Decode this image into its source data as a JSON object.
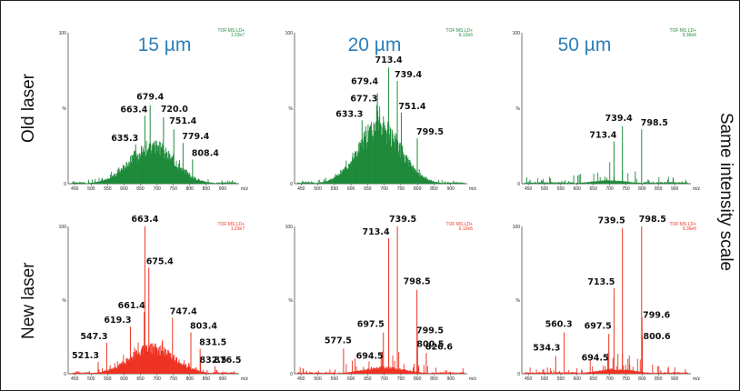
{
  "row_labels": [
    "Old laser",
    "New laser"
  ],
  "column_titles": [
    "15 µm",
    "20 µm",
    "50 µm"
  ],
  "side_label": "Same intensity scale",
  "colors": {
    "old": "#1e8a3a",
    "new": "#ee3322",
    "column_title": "#2c7fb8"
  },
  "chart_data": [
    {
      "type": "bar",
      "row": "Old laser",
      "column": "15 µm",
      "header": [
        "TOF MS LD+",
        "1.23e7"
      ],
      "ylabel": "%",
      "xlabel": "m/z",
      "xlim": [
        430,
        950
      ],
      "ylim": [
        0,
        100
      ],
      "xticks": [
        450,
        500,
        550,
        600,
        650,
        700,
        750,
        800,
        850,
        900
      ],
      "ytick_labels": [
        "100",
        "%",
        "0"
      ],
      "envelope": {
        "center": 685,
        "width": 95,
        "height": 24
      },
      "peaks": [
        {
          "mz": 635.3,
          "rel": 26,
          "label": "635.3"
        },
        {
          "mz": 663.4,
          "rel": 45,
          "label": "663.4"
        },
        {
          "mz": 679.4,
          "rel": 52,
          "label": "679.4"
        },
        {
          "mz": 720.0,
          "rel": 44,
          "label": "720.0"
        },
        {
          "mz": 751.4,
          "rel": 36,
          "label": "751.4"
        },
        {
          "mz": 779.4,
          "rel": 27,
          "label": "779.4"
        },
        {
          "mz": 808.4,
          "rel": 16,
          "label": "808.4"
        }
      ]
    },
    {
      "type": "bar",
      "row": "Old laser",
      "column": "20 µm",
      "header": [
        "TOF MS LD+",
        "6.12e6"
      ],
      "ylabel": "%",
      "xlabel": "m/z",
      "xlim": [
        430,
        950
      ],
      "ylim": [
        0,
        100
      ],
      "xticks": [
        450,
        500,
        550,
        600,
        650,
        700,
        750,
        800,
        850,
        900
      ],
      "ytick_labels": [
        "100",
        "%",
        "0"
      ],
      "envelope": {
        "center": 685,
        "width": 90,
        "height": 37
      },
      "peaks": [
        {
          "mz": 633.3,
          "rel": 42,
          "label": "633.3"
        },
        {
          "mz": 677.3,
          "rel": 52,
          "label": "677.3"
        },
        {
          "mz": 679.4,
          "rel": 60,
          "label": "679.4"
        },
        {
          "mz": 713.4,
          "rel": 77,
          "label": "713.4"
        },
        {
          "mz": 739.4,
          "rel": 68,
          "label": "739.4"
        },
        {
          "mz": 751.4,
          "rel": 47,
          "label": "751.4"
        },
        {
          "mz": 799.5,
          "rel": 30,
          "label": "799.5"
        }
      ]
    },
    {
      "type": "bar",
      "row": "Old laser",
      "column": "50 µm",
      "header": [
        "TOF MS LD+",
        "9.36e6"
      ],
      "ylabel": "%",
      "xlabel": "m/z",
      "xlim": [
        430,
        950
      ],
      "ylim": [
        0,
        100
      ],
      "xticks": [
        450,
        500,
        550,
        600,
        650,
        700,
        750,
        800,
        850,
        900
      ],
      "ytick_labels": [
        "100",
        "%",
        "0"
      ],
      "envelope": {
        "center": 700,
        "width": 80,
        "height": 2
      },
      "peaks": [
        {
          "mz": 713.4,
          "rel": 28,
          "label": "713.4"
        },
        {
          "mz": 739.4,
          "rel": 38,
          "label": "739.4"
        },
        {
          "mz": 798.5,
          "rel": 36,
          "label": "798.5"
        }
      ]
    },
    {
      "type": "bar",
      "row": "New laser",
      "column": "15 µm",
      "header": [
        "TOF MS LD+",
        "1.23e7"
      ],
      "ylabel": "%",
      "xlabel": "m/z",
      "xlim": [
        430,
        950
      ],
      "ylim": [
        0,
        100
      ],
      "xticks": [
        450,
        500,
        550,
        600,
        650,
        700,
        750,
        800,
        850,
        900
      ],
      "ytick_labels": [
        "100",
        "%",
        "0"
      ],
      "envelope": {
        "center": 685,
        "width": 95,
        "height": 17
      },
      "peaks": [
        {
          "mz": 521.3,
          "rel": 8,
          "label": "521.3"
        },
        {
          "mz": 547.3,
          "rel": 21,
          "label": "547.3"
        },
        {
          "mz": 619.3,
          "rel": 32,
          "label": "619.3"
        },
        {
          "mz": 661.4,
          "rel": 42,
          "label": "661.4"
        },
        {
          "mz": 663.4,
          "rel": 100,
          "label": "663.4"
        },
        {
          "mz": 675.4,
          "rel": 72,
          "label": "675.4"
        },
        {
          "mz": 747.4,
          "rel": 38,
          "label": "747.4"
        },
        {
          "mz": 803.4,
          "rel": 28,
          "label": "803.4"
        },
        {
          "mz": 831.5,
          "rel": 17,
          "label": "831.5"
        },
        {
          "mz": 832.5,
          "rel": 11,
          "label": "832.5"
        },
        {
          "mz": 876.5,
          "rel": 5,
          "label": "876.5"
        }
      ]
    },
    {
      "type": "bar",
      "row": "New laser",
      "column": "20 µm",
      "header": [
        "TOF MS LD+",
        "6.12e6"
      ],
      "ylabel": "%",
      "xlabel": "m/z",
      "xlim": [
        430,
        950
      ],
      "ylim": [
        0,
        100
      ],
      "xticks": [
        450,
        500,
        550,
        600,
        650,
        700,
        750,
        800,
        850,
        900
      ],
      "ytick_labels": [
        "100",
        "%",
        "0"
      ],
      "envelope": {
        "center": 700,
        "width": 90,
        "height": 4
      },
      "peaks": [
        {
          "mz": 577.5,
          "rel": 17,
          "label": "577.5"
        },
        {
          "mz": 694.5,
          "rel": 15,
          "label": "694.5"
        },
        {
          "mz": 697.5,
          "rel": 28,
          "label": "697.5"
        },
        {
          "mz": 713.4,
          "rel": 92,
          "label": "713.4"
        },
        {
          "mz": 739.5,
          "rel": 100,
          "label": "739.5"
        },
        {
          "mz": 798.5,
          "rel": 57,
          "label": "798.5"
        },
        {
          "mz": 799.5,
          "rel": 30,
          "label": "799.5"
        },
        {
          "mz": 800.5,
          "rel": 22,
          "label": "800.5"
        },
        {
          "mz": 826.6,
          "rel": 14,
          "label": "826.6"
        }
      ]
    },
    {
      "type": "bar",
      "row": "New laser",
      "column": "50 µm",
      "header": [
        "TOF MS LD+",
        "9.36e6"
      ],
      "ylabel": "%",
      "xlabel": "m/z",
      "xlim": [
        430,
        950
      ],
      "ylim": [
        0,
        100
      ],
      "xticks": [
        450,
        500,
        550,
        600,
        650,
        700,
        750,
        800,
        850,
        900
      ],
      "ytick_labels": [
        "100",
        "%",
        "0"
      ],
      "envelope": {
        "center": 720,
        "width": 80,
        "height": 3
      },
      "peaks": [
        {
          "mz": 534.3,
          "rel": 12,
          "label": "534.3"
        },
        {
          "mz": 560.3,
          "rel": 28,
          "label": "560.3"
        },
        {
          "mz": 694.5,
          "rel": 14,
          "label": "694.5"
        },
        {
          "mz": 697.5,
          "rel": 27,
          "label": "697.5"
        },
        {
          "mz": 713.5,
          "rel": 58,
          "label": "713.5"
        },
        {
          "mz": 739.5,
          "rel": 99,
          "label": "739.5"
        },
        {
          "mz": 798.5,
          "rel": 100,
          "label": "798.5"
        },
        {
          "mz": 799.6,
          "rel": 38,
          "label": "799.6"
        },
        {
          "mz": 800.6,
          "rel": 26,
          "label": "800.6"
        }
      ]
    }
  ]
}
